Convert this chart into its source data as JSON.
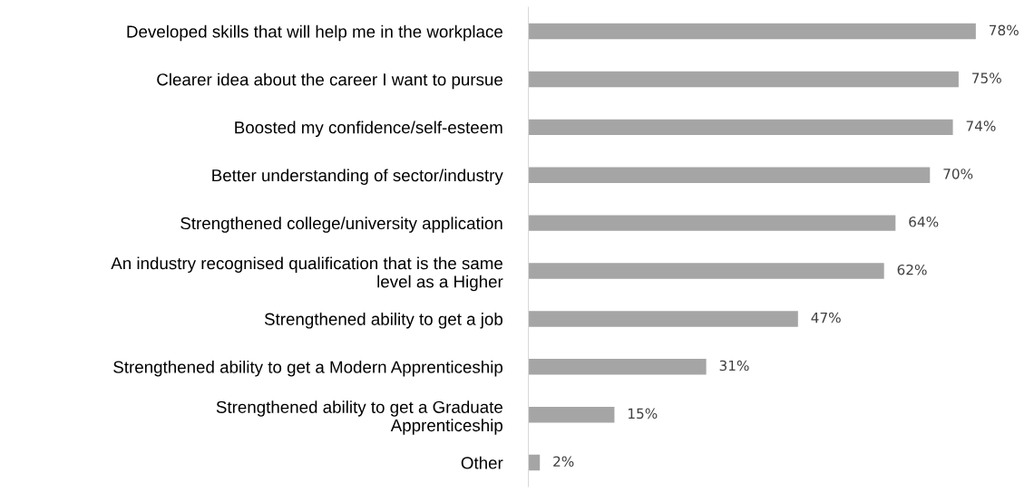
{
  "chart_data": {
    "type": "bar",
    "orientation": "horizontal",
    "categories": [
      "Developed skills that will help me in the workplace",
      "Clearer idea about the career I want to pursue",
      "Boosted my confidence/self-esteem",
      "Better understanding of sector/industry",
      "Strengthened college/university application",
      "An industry recognised qualification that is the same\nlevel as a Higher",
      "Strengthened ability to get a job",
      "Strengthened ability to get a Modern Apprenticeship",
      "Strengthened ability to get a Graduate\nApprenticeship",
      "Other"
    ],
    "values": [
      78,
      75,
      74,
      70,
      64,
      62,
      47,
      31,
      15,
      2
    ],
    "value_labels": [
      "78%",
      "75%",
      "74%",
      "70%",
      "64%",
      "62%",
      "47%",
      "31%",
      "15%",
      "2%"
    ],
    "color": "#a5a5a5",
    "tick_labels": "y",
    "grid": false,
    "legend": false
  }
}
